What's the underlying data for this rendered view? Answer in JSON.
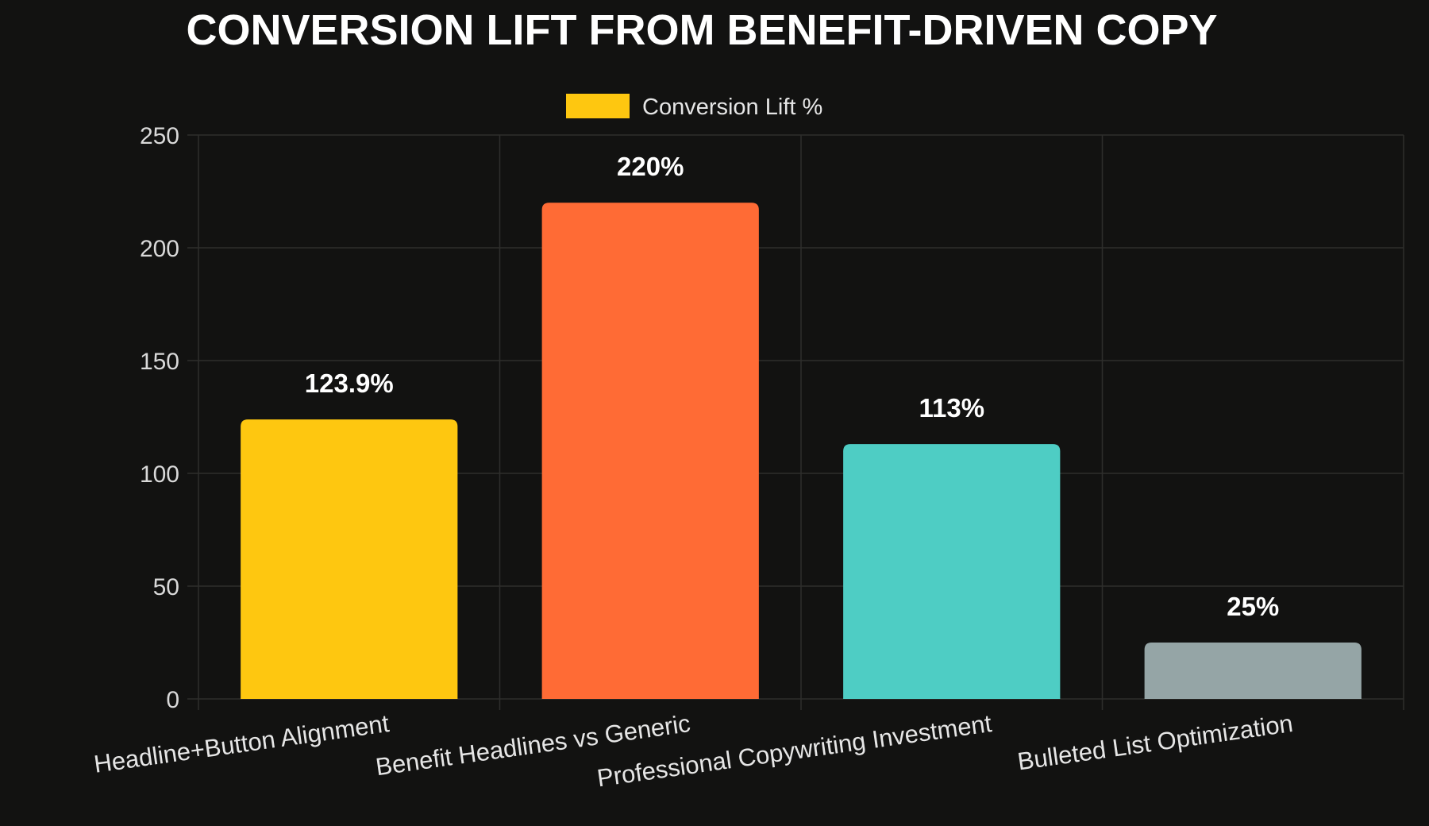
{
  "chart_data": {
    "type": "bar",
    "title": "CONVERSION LIFT FROM BENEFIT-DRIVEN COPY",
    "categories": [
      "Headline+Button Alignment",
      "Benefit Headlines vs Generic",
      "Professional Copywriting Investment",
      "Bulleted List Optimization"
    ],
    "series": [
      {
        "name": "Conversion Lift %",
        "values": [
          123.9,
          220,
          113,
          25
        ],
        "data_labels": [
          "123.9%",
          "220%",
          "113%",
          "25%"
        ],
        "colors": [
          "#FEC710",
          "#FF6B35",
          "#4ECDC4",
          "#95A5A6"
        ]
      }
    ],
    "legend": {
      "label": "Conversion Lift %",
      "swatch_color": "#FEC710",
      "placement": "top-center"
    },
    "ylim": [
      0,
      250
    ],
    "yticks": [
      0,
      50,
      100,
      150,
      200,
      250
    ],
    "grid": true,
    "xlabel": "",
    "ylabel": ""
  }
}
